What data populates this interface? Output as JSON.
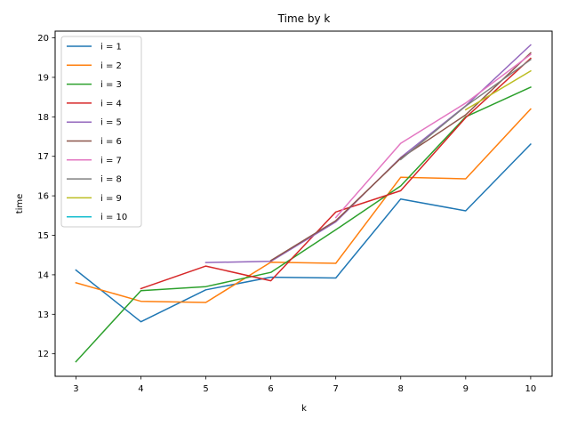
{
  "chart_data": {
    "type": "line",
    "title": "Time by k",
    "xlabel": "k",
    "ylabel": "time",
    "xlim": [
      2.68,
      10.33
    ],
    "ylim": [
      11.43,
      20.17
    ],
    "xticks": [
      3,
      4,
      5,
      6,
      7,
      8,
      9,
      10
    ],
    "yticks": [
      12,
      13,
      14,
      15,
      16,
      17,
      18,
      19,
      20
    ],
    "grid": false,
    "legend_position": "top-left",
    "series": [
      {
        "name": "i = 1",
        "color": "#1f77b4",
        "x": [
          3,
          4,
          5,
          6,
          7,
          8,
          9,
          10
        ],
        "y": [
          14.12,
          12.81,
          13.62,
          13.94,
          13.92,
          15.92,
          15.62,
          17.31
        ]
      },
      {
        "name": "i = 2",
        "color": "#ff7f0e",
        "x": [
          3,
          4,
          5,
          6,
          7,
          8,
          9,
          10
        ],
        "y": [
          13.8,
          13.33,
          13.3,
          14.32,
          14.29,
          16.47,
          16.43,
          18.2
        ]
      },
      {
        "name": "i = 3",
        "color": "#2ca02c",
        "x": [
          3,
          4,
          5,
          6,
          7,
          8,
          9,
          10
        ],
        "y": [
          11.8,
          13.6,
          13.7,
          14.06,
          15.14,
          16.25,
          18.0,
          18.75
        ]
      },
      {
        "name": "i = 4",
        "color": "#d62728",
        "x": [
          4,
          5,
          6,
          7,
          8,
          9,
          10
        ],
        "y": [
          13.65,
          14.22,
          13.85,
          15.59,
          16.13,
          17.98,
          19.48
        ]
      },
      {
        "name": "i = 5",
        "color": "#9467bd",
        "x": [
          5,
          6,
          7,
          8,
          9,
          10
        ],
        "y": [
          14.31,
          14.34,
          15.34,
          16.97,
          18.28,
          19.82
        ]
      },
      {
        "name": "i = 6",
        "color": "#8c564b",
        "x": [
          6,
          7,
          8,
          9,
          10
        ],
        "y": [
          14.36,
          15.37,
          16.95,
          18.05,
          19.62
        ]
      },
      {
        "name": "i = 7",
        "color": "#e377c2",
        "x": [
          7,
          8,
          9,
          10
        ],
        "y": [
          15.45,
          17.33,
          18.35,
          19.58
        ]
      },
      {
        "name": "i = 8",
        "color": "#7f7f7f",
        "x": [
          8,
          9,
          10
        ],
        "y": [
          16.92,
          18.27,
          19.45
        ]
      },
      {
        "name": "i = 9",
        "color": "#bcbd22",
        "x": [
          9,
          10
        ],
        "y": [
          18.18,
          19.16
        ]
      },
      {
        "name": "i = 10",
        "color": "#17becf",
        "x": [
          10
        ],
        "y": [
          19.5
        ]
      }
    ]
  }
}
